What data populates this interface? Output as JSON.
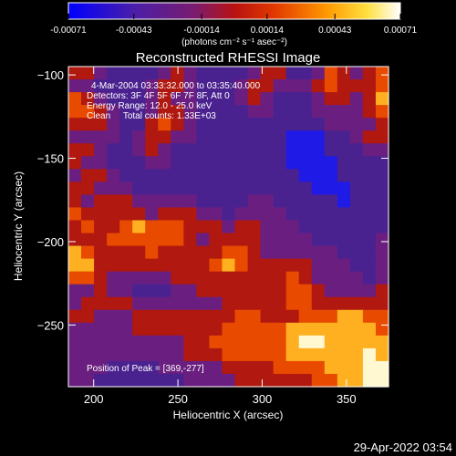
{
  "chart_data": {
    "type": "heatmap",
    "title": "Reconstructed RHESSI Image",
    "xlabel": "Heliocentric X (arcsec)",
    "ylabel": "Heliocentric Y (arcsec)",
    "xlim": [
      185,
      375
    ],
    "ylim": [
      -287,
      -95
    ],
    "x_ticks": [
      200,
      250,
      300,
      350
    ],
    "y_ticks": [
      -100,
      -150,
      -200,
      -250
    ],
    "colorbar": {
      "ticks": [
        -0.00071,
        -0.00043,
        -0.00014,
        0.00014,
        0.00043,
        0.00071
      ],
      "tick_labels": [
        "-0.00071",
        "-0.00043",
        "-0.00014",
        "0.00014",
        "0.00043",
        "0.00071"
      ],
      "unit_label": "(photons cm⁻² s⁻¹ asec⁻²)",
      "colors": [
        "#0000ff",
        "#5a2aa0",
        "#7a2a7a",
        "#c81800",
        "#ff7a00",
        "#ffdc40",
        "#ffffff"
      ]
    },
    "annotations": [
      "4-Mar-2004 03:33:32.000 to 03:35:40.000",
      "Detectors: 3F 4F 5F 6F 7F 8F, Att 0",
      "Energy Range: 12.0 - 25.0 keV",
      "Clean     Total counts: 1.33E+03",
      "Position of Peak = [369,-277]"
    ],
    "peak": {
      "x": 369,
      "y": -277
    },
    "grid": false,
    "image": {
      "description_levels": "values on a 0-6 color index scale, rows top (y=-95) to bottom (y=-287), cols left (x=185) to right (x=375)",
      "rows": [
        [
          3,
          3,
          2,
          1,
          1,
          1,
          1,
          2,
          3,
          2,
          1,
          1,
          1,
          1,
          2,
          3,
          3,
          1,
          1,
          2,
          4,
          3,
          2,
          3,
          4
        ],
        [
          2,
          2,
          1,
          1,
          1,
          1,
          2,
          3,
          3,
          2,
          1,
          1,
          1,
          2,
          3,
          3,
          2,
          2,
          2,
          3,
          4,
          3,
          3,
          3,
          4
        ],
        [
          4,
          3,
          2,
          1,
          1,
          1,
          2,
          3,
          2,
          2,
          1,
          1,
          1,
          2,
          3,
          2,
          1,
          1,
          1,
          2,
          3,
          3,
          2,
          3,
          5
        ],
        [
          4,
          4,
          3,
          2,
          1,
          1,
          2,
          3,
          3,
          2,
          1,
          1,
          1,
          1,
          2,
          2,
          1,
          1,
          1,
          2,
          2,
          2,
          2,
          3,
          4
        ],
        [
          3,
          3,
          3,
          2,
          1,
          1,
          3,
          4,
          3,
          2,
          1,
          1,
          1,
          1,
          1,
          1,
          1,
          1,
          1,
          1,
          2,
          2,
          2,
          2,
          3
        ],
        [
          2,
          2,
          2,
          2,
          1,
          2,
          3,
          3,
          2,
          2,
          1,
          1,
          1,
          1,
          1,
          1,
          1,
          0,
          0,
          0,
          1,
          1,
          2,
          3,
          3
        ],
        [
          3,
          3,
          2,
          1,
          1,
          2,
          3,
          2,
          1,
          1,
          1,
          1,
          1,
          1,
          1,
          1,
          1,
          0,
          0,
          0,
          1,
          1,
          1,
          2,
          2
        ],
        [
          3,
          2,
          2,
          1,
          1,
          1,
          2,
          2,
          1,
          1,
          1,
          1,
          1,
          1,
          1,
          1,
          1,
          0,
          0,
          0,
          0,
          1,
          1,
          1,
          1
        ],
        [
          2,
          3,
          3,
          2,
          1,
          1,
          1,
          1,
          1,
          1,
          1,
          1,
          1,
          1,
          1,
          1,
          1,
          1,
          0,
          0,
          0,
          1,
          1,
          1,
          1
        ],
        [
          3,
          3,
          2,
          2,
          2,
          1,
          1,
          1,
          1,
          1,
          1,
          1,
          1,
          1,
          1,
          1,
          1,
          1,
          1,
          0,
          0,
          0,
          1,
          1,
          1
        ],
        [
          3,
          2,
          3,
          3,
          3,
          2,
          2,
          2,
          2,
          2,
          1,
          1,
          1,
          1,
          2,
          2,
          1,
          1,
          1,
          1,
          1,
          0,
          1,
          1,
          1
        ],
        [
          4,
          3,
          3,
          3,
          3,
          3,
          2,
          3,
          3,
          3,
          2,
          2,
          1,
          2,
          2,
          2,
          2,
          1,
          1,
          1,
          1,
          1,
          1,
          1,
          1
        ],
        [
          3,
          4,
          3,
          3,
          4,
          5,
          4,
          4,
          4,
          3,
          3,
          3,
          2,
          3,
          3,
          2,
          2,
          2,
          1,
          1,
          1,
          1,
          1,
          1,
          1
        ],
        [
          3,
          3,
          3,
          4,
          4,
          4,
          4,
          4,
          4,
          3,
          2,
          3,
          3,
          3,
          3,
          2,
          2,
          2,
          2,
          1,
          1,
          1,
          1,
          1,
          2
        ],
        [
          5,
          4,
          3,
          3,
          3,
          3,
          4,
          3,
          3,
          3,
          3,
          3,
          4,
          4,
          3,
          2,
          2,
          2,
          2,
          2,
          2,
          1,
          1,
          1,
          2
        ],
        [
          5,
          5,
          3,
          3,
          3,
          3,
          3,
          3,
          3,
          3,
          3,
          4,
          5,
          4,
          3,
          3,
          3,
          3,
          3,
          2,
          2,
          2,
          1,
          1,
          2
        ],
        [
          4,
          4,
          3,
          2,
          2,
          2,
          2,
          2,
          3,
          3,
          3,
          3,
          3,
          3,
          3,
          3,
          3,
          4,
          3,
          2,
          2,
          2,
          2,
          1,
          2
        ],
        [
          2,
          2,
          3,
          2,
          2,
          1,
          1,
          1,
          2,
          2,
          3,
          3,
          3,
          3,
          3,
          3,
          3,
          4,
          4,
          3,
          2,
          2,
          2,
          2,
          3
        ],
        [
          2,
          3,
          3,
          3,
          3,
          2,
          2,
          2,
          2,
          2,
          2,
          2,
          3,
          3,
          3,
          3,
          3,
          4,
          4,
          3,
          3,
          3,
          3,
          3,
          3
        ],
        [
          3,
          3,
          2,
          2,
          2,
          3,
          3,
          3,
          3,
          3,
          3,
          3,
          3,
          4,
          4,
          3,
          3,
          3,
          4,
          4,
          4,
          5,
          5,
          4,
          4
        ],
        [
          2,
          2,
          2,
          2,
          2,
          3,
          3,
          3,
          3,
          3,
          3,
          3,
          4,
          4,
          4,
          4,
          4,
          5,
          5,
          5,
          5,
          5,
          5,
          5,
          4
        ],
        [
          2,
          2,
          2,
          2,
          2,
          2,
          2,
          2,
          2,
          3,
          3,
          4,
          4,
          4,
          4,
          4,
          4,
          5,
          6,
          6,
          5,
          5,
          5,
          5,
          5
        ],
        [
          2,
          2,
          2,
          2,
          2,
          2,
          2,
          2,
          2,
          3,
          3,
          3,
          4,
          4,
          4,
          4,
          4,
          5,
          5,
          5,
          5,
          5,
          5,
          6,
          5
        ],
        [
          2,
          2,
          2,
          1,
          1,
          1,
          1,
          2,
          2,
          2,
          2,
          2,
          3,
          3,
          3,
          3,
          4,
          4,
          4,
          4,
          5,
          5,
          5,
          6,
          6
        ],
        [
          2,
          2,
          1,
          1,
          1,
          1,
          1,
          1,
          1,
          2,
          2,
          2,
          2,
          3,
          3,
          3,
          3,
          3,
          3,
          4,
          4,
          5,
          5,
          6,
          6
        ]
      ]
    }
  },
  "footer": {
    "timestamp": "29-Apr-2022 03:54"
  }
}
